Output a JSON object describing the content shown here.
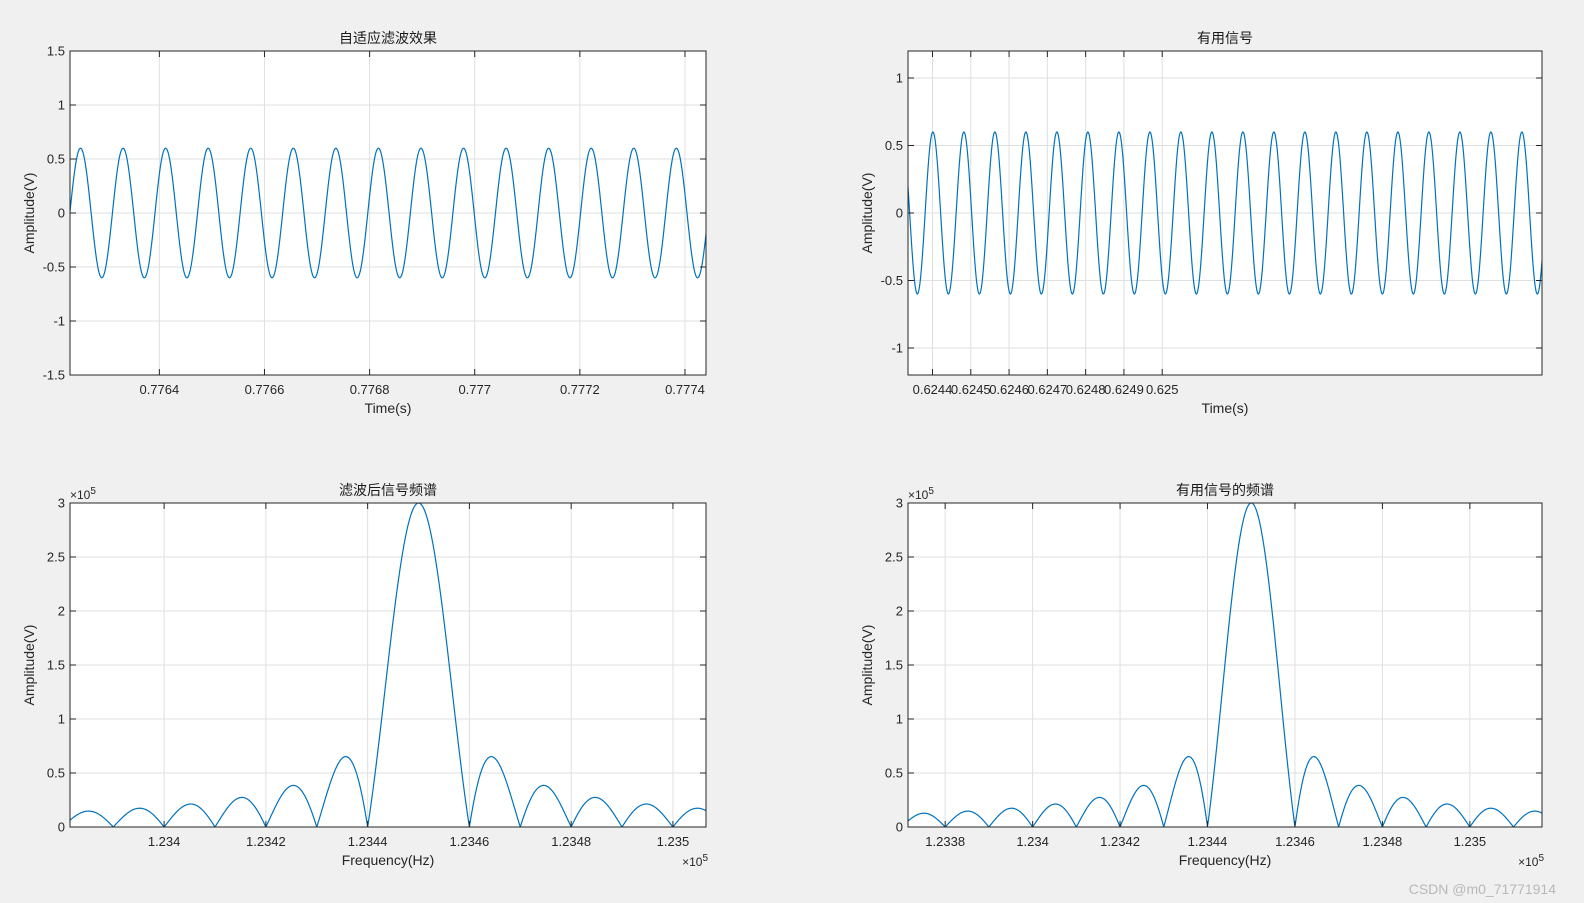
{
  "figure": {
    "background": "#f0f0f0",
    "axes_background": "#ffffff",
    "line_color": "#0072bd",
    "grid_color": "#dfdfdf"
  },
  "watermark": "CSDN @m0_71771914",
  "chart_data": [
    {
      "id": "ax1",
      "type": "line",
      "title": "自适应滤波效果",
      "xlabel": "Time(s)",
      "ylabel": "Amplitude(V)",
      "xlim": [
        0.77623,
        0.77744
      ],
      "ylim": [
        -1.5,
        1.5
      ],
      "xticks": [
        0.7764,
        0.7766,
        0.7768,
        0.777,
        0.7772,
        0.7774
      ],
      "xtick_labels": [
        "0.7764",
        "0.7766",
        "0.7768",
        "0.777",
        "0.7772",
        "0.7774"
      ],
      "yticks": [
        -1.5,
        -1,
        -0.5,
        0,
        0.5,
        1,
        1.5
      ],
      "ytick_labels": [
        "-1.5",
        "-1",
        "-0.5",
        "0",
        "0.5",
        "1",
        "1.5"
      ],
      "x_exponent": "",
      "y_exponent": "",
      "grid": true,
      "series": [
        {
          "kind": "sine",
          "amplitude": 0.6,
          "period_s": 8.097e-05,
          "first_peak_s": 0.77625
        }
      ]
    },
    {
      "id": "ax2",
      "type": "line",
      "title": "有用信号",
      "xlabel": "Time(s)",
      "ylabel": "Amplitude(V)",
      "xlim": [
        0.624336,
        0.625992
      ],
      "ylim": [
        -1.2,
        1.2
      ],
      "xticks": [
        0.6244,
        0.6245,
        0.6246,
        0.6247,
        0.6248,
        0.6249,
        0.625
      ],
      "xtick_labels": [
        "0.6244",
        "0.6245",
        "0.6246",
        "0.6247",
        "0.6248",
        "0.6249",
        "0.625"
      ],
      "yticks": [
        -1,
        -0.5,
        0,
        0.5,
        1
      ],
      "ytick_labels": [
        "-1",
        "-0.5",
        "0",
        "0.5",
        "1"
      ],
      "x_exponent": "",
      "y_exponent": "",
      "grid": true,
      "series": [
        {
          "kind": "sine",
          "amplitude": 0.6,
          "period_s": 8.097e-05,
          "first_peak_s": 0.624401
        }
      ]
    },
    {
      "id": "ax3",
      "type": "line",
      "title": "滤波后信号频谱",
      "xlabel": "Frequency(Hz)",
      "ylabel": "Amplitude(V)",
      "xlim": [
        123381.5,
        123506.5
      ],
      "ylim": [
        0,
        300000
      ],
      "xticks": [
        123400,
        123420,
        123440,
        123460,
        123480,
        123500
      ],
      "xtick_labels": [
        "1.234",
        "1.2342",
        "1.2344",
        "1.2346",
        "1.2348",
        "1.235"
      ],
      "yticks": [
        0,
        50000,
        100000,
        150000,
        200000,
        250000,
        300000
      ],
      "ytick_labels": [
        "0",
        "0.5",
        "1",
        "1.5",
        "2",
        "2.5",
        "3"
      ],
      "x_exponent": "5",
      "y_exponent": "5",
      "grid": true,
      "series": [
        {
          "kind": "sinc",
          "peak_value": 300000,
          "center_hz": 123450,
          "zero_spacing_hz": 10.0
        }
      ]
    },
    {
      "id": "ax4",
      "type": "line",
      "title": "有用信号的频谱",
      "xlabel": "Frequency(Hz)",
      "ylabel": "Amplitude(V)",
      "xlim": [
        123371.5,
        123516.5
      ],
      "ylim": [
        0,
        300000
      ],
      "xticks": [
        123380,
        123400,
        123420,
        123440,
        123460,
        123480,
        123500
      ],
      "xtick_labels": [
        "1.2338",
        "1.234",
        "1.2342",
        "1.2344",
        "1.2346",
        "1.2348",
        "1.235"
      ],
      "yticks": [
        0,
        50000,
        100000,
        150000,
        200000,
        250000,
        300000
      ],
      "ytick_labels": [
        "0",
        "0.5",
        "1",
        "1.5",
        "2",
        "2.5",
        "3"
      ],
      "x_exponent": "5",
      "y_exponent": "5",
      "grid": true,
      "series": [
        {
          "kind": "sinc",
          "peak_value": 300000,
          "center_hz": 123450,
          "zero_spacing_hz": 10.0
        }
      ]
    }
  ]
}
